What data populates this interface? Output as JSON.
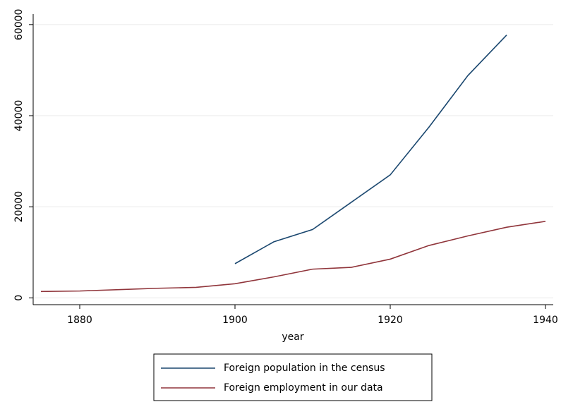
{
  "chart_data": {
    "type": "line",
    "x": [
      1875,
      1880,
      1885,
      1890,
      1895,
      1900,
      1905,
      1910,
      1915,
      1920,
      1925,
      1930,
      1935,
      1940
    ],
    "series": [
      {
        "name": "Foreign population in the census",
        "color": "#1a476f",
        "values": [
          null,
          null,
          null,
          null,
          null,
          7500,
          12300,
          15000,
          21000,
          27000,
          37500,
          48800,
          57700,
          null
        ]
      },
      {
        "name": "Foreign employment in our data",
        "color": "#90353b",
        "values": [
          1400,
          1500,
          1800,
          2100,
          2300,
          3100,
          4600,
          6300,
          6700,
          8500,
          11500,
          13600,
          15500,
          16800
        ]
      }
    ],
    "xlabel": "year",
    "xlim": [
      1874,
      1941
    ],
    "xticks": [
      1880,
      1900,
      1920,
      1940
    ],
    "ylim": [
      -1500,
      62300
    ],
    "yticks": [
      0,
      20000,
      40000,
      60000
    ],
    "grid": true,
    "legend": "bottom"
  }
}
